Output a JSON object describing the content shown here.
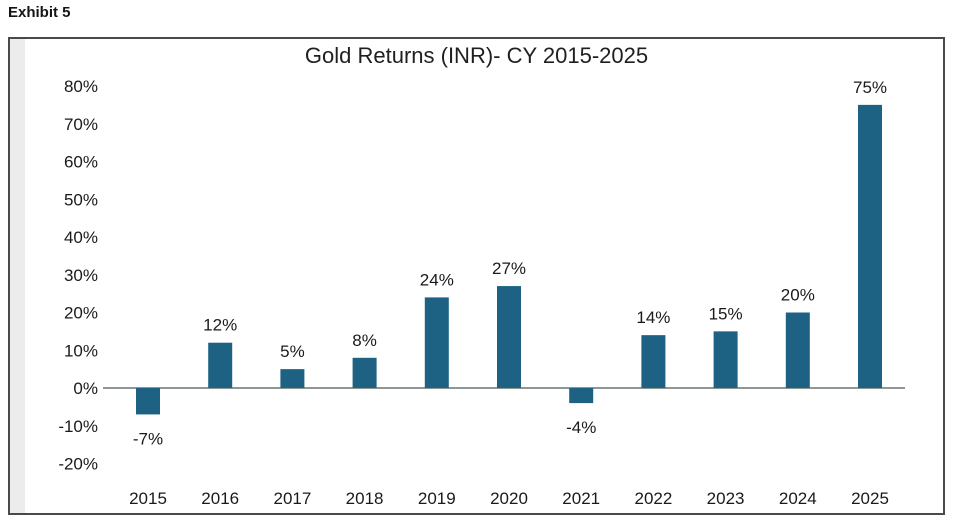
{
  "exhibit_label": "Exhibit 5",
  "chart_data": {
    "type": "bar",
    "title": "Gold Returns (INR)- CY 2015-2025",
    "categories": [
      "2015",
      "2016",
      "2017",
      "2018",
      "2019",
      "2020",
      "2021",
      "2022",
      "2023",
      "2024",
      "2025"
    ],
    "values": [
      -7,
      12,
      5,
      8,
      24,
      27,
      -4,
      14,
      15,
      20,
      75
    ],
    "data_labels": [
      "-7%",
      "12%",
      "5%",
      "8%",
      "24%",
      "27%",
      "-4%",
      "14%",
      "15%",
      "20%",
      "75%"
    ],
    "unit": "%",
    "xlabel": "",
    "ylabel": "",
    "ylim": [
      -20,
      80
    ],
    "ytick_step": 10,
    "ytick_labels": [
      "80%",
      "70%",
      "60%",
      "50%",
      "40%",
      "30%",
      "20%",
      "10%",
      "0%",
      "-10%",
      "-20%"
    ],
    "grid": false,
    "legend": "none",
    "bar_color": "#1e6283",
    "axis_line_color": "#8d9794",
    "text_color": "#1a1a1a",
    "frame_border_color": "#4a4a4a"
  }
}
